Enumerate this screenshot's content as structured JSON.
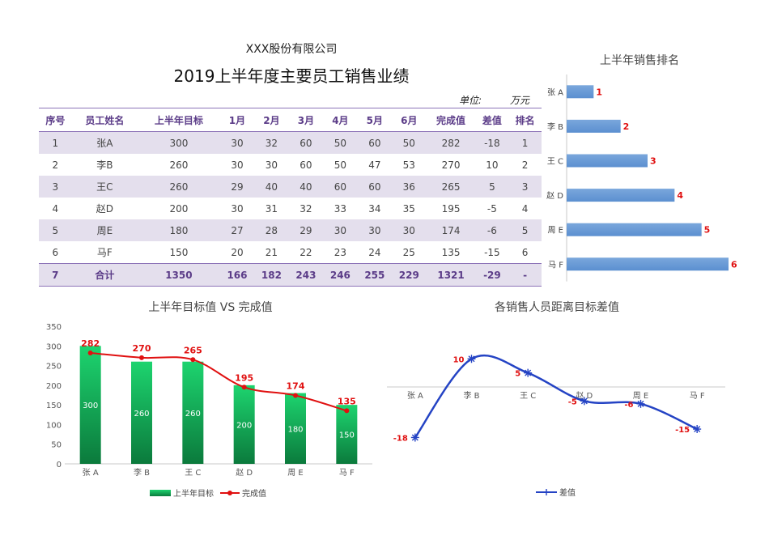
{
  "header": {
    "company": "XXX股份有限公司",
    "title": "2019上半年度主要员工销售业绩",
    "unit_label": "单位:",
    "unit_value": "万元"
  },
  "table": {
    "columns": [
      "序号",
      "员工姓名",
      "上半年目标",
      "1月",
      "2月",
      "3月",
      "4月",
      "5月",
      "6月",
      "完成值",
      "差值",
      "排名"
    ],
    "rows": [
      [
        "1",
        "张A",
        "300",
        "30",
        "32",
        "60",
        "50",
        "60",
        "50",
        "282",
        "-18",
        "1"
      ],
      [
        "2",
        "李B",
        "260",
        "30",
        "30",
        "60",
        "50",
        "47",
        "53",
        "270",
        "10",
        "2"
      ],
      [
        "3",
        "王C",
        "260",
        "29",
        "40",
        "40",
        "60",
        "60",
        "36",
        "265",
        "5",
        "3"
      ],
      [
        "4",
        "赵D",
        "200",
        "30",
        "31",
        "32",
        "33",
        "34",
        "35",
        "195",
        "-5",
        "4"
      ],
      [
        "5",
        "周E",
        "180",
        "27",
        "28",
        "29",
        "30",
        "30",
        "30",
        "174",
        "-6",
        "5"
      ],
      [
        "6",
        "马F",
        "150",
        "20",
        "21",
        "22",
        "23",
        "24",
        "25",
        "135",
        "-15",
        "6"
      ]
    ],
    "total": [
      "7",
      "合计",
      "1350",
      "166",
      "182",
      "243",
      "246",
      "255",
      "229",
      "1321",
      "-29",
      "-"
    ]
  },
  "colors": {
    "header_text": "#5b3c88",
    "stripe": "#e4dfed",
    "bar_blue": "#5b8fd0",
    "label_red": "#e01010",
    "bar_green_top": "#1dd46f",
    "bar_green_bottom": "#0b7a3c",
    "line_red": "#e01010",
    "line_blue": "#2443c4"
  },
  "chart_data": [
    {
      "type": "bar",
      "orientation": "horizontal",
      "title": "上半年销售排名",
      "categories": [
        "张 A",
        "李 B",
        "王 C",
        "赵 D",
        "周 E",
        "马 F"
      ],
      "values": [
        1,
        2,
        3,
        4,
        5,
        6
      ],
      "data_labels": [
        "1",
        "2",
        "3",
        "4",
        "5",
        "6"
      ]
    },
    {
      "type": "bar",
      "title": "上半年目标值 VS 完成值",
      "categories": [
        "张 A",
        "李 B",
        "王 C",
        "赵 D",
        "周 E",
        "马 F"
      ],
      "ylim": [
        0,
        350
      ],
      "yticks": [
        "0",
        "50",
        "100",
        "150",
        "200",
        "250",
        "300",
        "350"
      ],
      "series": [
        {
          "name": "上半年目标",
          "type": "bar",
          "values": [
            300,
            260,
            260,
            200,
            180,
            150
          ]
        },
        {
          "name": "完成值",
          "type": "line",
          "values": [
            282,
            270,
            265,
            195,
            174,
            135
          ]
        }
      ]
    },
    {
      "type": "line",
      "title": "各销售人员距离目标差值",
      "categories": [
        "张 A",
        "李 B",
        "王 C",
        "赵 D",
        "周 E",
        "马 F"
      ],
      "series": [
        {
          "name": "差值",
          "values": [
            -18,
            10,
            5,
            -5,
            -6,
            -15
          ]
        }
      ],
      "data_labels": [
        "-18",
        "10",
        "5",
        "-5",
        "-6",
        "-15"
      ]
    }
  ]
}
